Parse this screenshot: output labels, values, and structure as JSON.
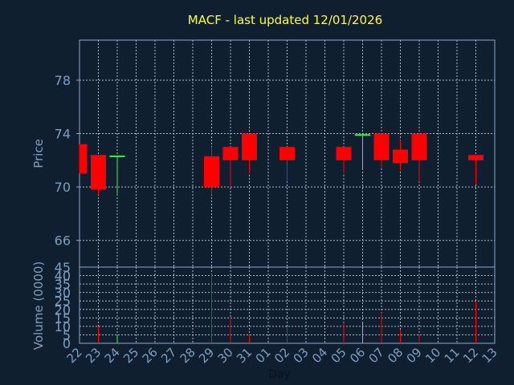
{
  "chart_data": [
    {
      "type": "candlestick",
      "title": "MACF - last updated 12/01/2026",
      "ylabel": "Price",
      "ylim": [
        64,
        81
      ],
      "yticks": [
        66,
        70,
        74,
        78
      ],
      "grid": true,
      "x_ticks": [
        "22",
        "23",
        "24",
        "25",
        "26",
        "27",
        "28",
        "29",
        "30",
        "31",
        "01",
        "02",
        "03",
        "04",
        "05",
        "06",
        "07",
        "08",
        "09",
        "10",
        "11",
        "12",
        "13"
      ],
      "candles": [
        {
          "x": 0,
          "open": 73.2,
          "close": 71.0,
          "high": 73.2,
          "low": 71.0
        },
        {
          "x": 1,
          "open": 72.4,
          "close": 69.8,
          "high": 72.4,
          "low": 69.4
        },
        {
          "x": 2,
          "open": 72.3,
          "close": 72.3,
          "high": 72.3,
          "low": 69.5
        },
        {
          "x": 7,
          "open": 72.3,
          "close": 70.0,
          "high": 73.0,
          "low": 69.4
        },
        {
          "x": 8,
          "open": 73.0,
          "close": 72.0,
          "high": 73.0,
          "low": 70.0
        },
        {
          "x": 9,
          "open": 74.0,
          "close": 72.0,
          "high": 74.0,
          "low": 71.0
        },
        {
          "x": 11,
          "open": 73.0,
          "close": 72.0,
          "high": 73.0,
          "low": 70.4
        },
        {
          "x": 14,
          "open": 73.0,
          "close": 72.0,
          "high": 73.0,
          "low": 71.0
        },
        {
          "x": 15,
          "open": 73.9,
          "close": 73.9,
          "high": 73.9,
          "low": 71.3
        },
        {
          "x": 16,
          "open": 74.0,
          "close": 72.0,
          "high": 74.0,
          "low": 71.4
        },
        {
          "x": 17,
          "open": 72.8,
          "close": 71.8,
          "high": 73.5,
          "low": 71.2
        },
        {
          "x": 18,
          "open": 74.0,
          "close": 72.0,
          "high": 74.0,
          "low": 70.4
        },
        {
          "x": 21,
          "open": 72.4,
          "close": 72.0,
          "high": 72.4,
          "low": 70.2
        }
      ]
    },
    {
      "type": "bar",
      "ylabel": "Volume (0000)",
      "xlabel": "Day",
      "ylim": [
        0,
        45
      ],
      "yticks": [
        0,
        5,
        10,
        15,
        20,
        25,
        30,
        35,
        40,
        45
      ],
      "x_ticks": [
        "22",
        "23",
        "24",
        "25",
        "26",
        "27",
        "28",
        "29",
        "30",
        "31",
        "01",
        "02",
        "03",
        "04",
        "05",
        "06",
        "07",
        "08",
        "09",
        "10",
        "11",
        "12",
        "13"
      ],
      "bars": [
        {
          "x": 1,
          "value": 10,
          "direction": "down"
        },
        {
          "x": 2,
          "value": 5,
          "direction": "up"
        },
        {
          "x": 7,
          "value": 41,
          "direction": "down"
        },
        {
          "x": 8,
          "value": 15,
          "direction": "down"
        },
        {
          "x": 9,
          "value": 5,
          "direction": "down"
        },
        {
          "x": 11,
          "value": 10,
          "direction": "down"
        },
        {
          "x": 14,
          "value": 12,
          "direction": "down"
        },
        {
          "x": 15,
          "value": 12,
          "direction": "up"
        },
        {
          "x": 16,
          "value": 18,
          "direction": "down"
        },
        {
          "x": 17,
          "value": 8,
          "direction": "down"
        },
        {
          "x": 18,
          "value": 5,
          "direction": "down"
        },
        {
          "x": 21,
          "value": 25,
          "direction": "down"
        }
      ]
    }
  ],
  "colors": {
    "background": "#0f1f30",
    "axis": "#8fa8c8",
    "label": "#7f9fc0",
    "title": "#ffff33",
    "up": "#33ff33",
    "down": "#ff0000",
    "grid": "#c8d2dc"
  }
}
